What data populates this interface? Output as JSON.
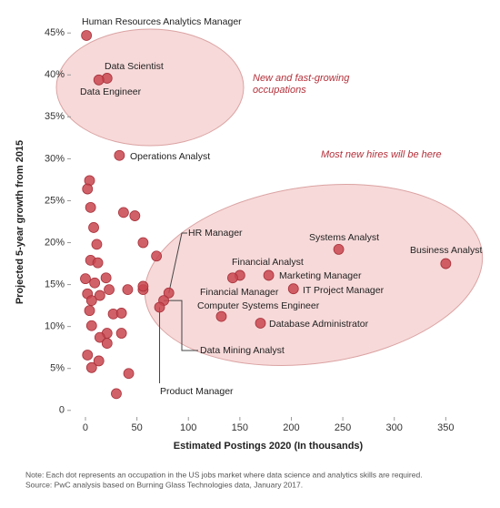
{
  "chart_data": {
    "type": "scatter",
    "x_label": "Estimated Postings 2020 (In thousands)",
    "y_label": "Projected 5-year growth from 2015",
    "annotations": [
      "New and fast-growing occupations",
      "Most new hires will be here"
    ],
    "note": "Note: Each dot represents an occupation in the US jobs market where data science and analytics skills are required.",
    "source": "Source: PwC analysis based on Burning Glass Technologies data, January 2017.",
    "color": "#c9454f",
    "xlim": [
      -15,
      370
    ],
    "ylim": [
      -1,
      46
    ],
    "xticks": [
      0,
      50,
      100,
      150,
      200,
      250,
      300,
      350
    ],
    "yticks": [
      0,
      {
        "value": 5,
        "label": "5%"
      },
      {
        "value": 10,
        "label": "10%"
      },
      {
        "value": 15,
        "label": "15%"
      },
      {
        "value": 20,
        "label": "20%"
      },
      {
        "value": 25,
        "label": "25%"
      },
      {
        "value": 30,
        "label": "30%"
      },
      {
        "value": 35,
        "label": "35%"
      },
      {
        "value": 40,
        "label": "40%"
      },
      {
        "value": 45,
        "label": "45%"
      }
    ],
    "point_labels": [
      "Human Resources Analytics Manager",
      "Data Scientist",
      "Data Engineer",
      "Operations Analyst",
      "HR Manager",
      "Financial Analyst",
      "Financial Manager",
      "Marketing Manager",
      "IT Project Manager",
      "Systems Analyst",
      "Business Analyst",
      "Computer Systems Engineer",
      "Database Administrator",
      "Data Mining Analyst",
      "Product Manager",
      null,
      null,
      null,
      null,
      null,
      null,
      null,
      null,
      null,
      null,
      null,
      null,
      null,
      null,
      null,
      null,
      null,
      null,
      null,
      null,
      null,
      null,
      null,
      null,
      null,
      null,
      null,
      null,
      null,
      null,
      null,
      null,
      null,
      null
    ],
    "x": [
      1,
      21,
      13,
      33,
      81,
      150,
      143,
      178,
      202,
      246,
      350,
      132,
      170,
      76,
      72,
      4,
      2,
      5,
      8,
      11,
      37,
      48,
      56,
      69,
      5,
      12,
      0,
      20,
      9,
      23,
      2,
      14,
      6,
      4,
      27,
      35,
      41,
      56,
      56,
      6,
      21,
      35,
      14,
      21,
      2,
      13,
      6,
      42,
      30
    ],
    "values": [
      44.7,
      39.6,
      39.4,
      30.4,
      14.0,
      16.1,
      15.8,
      16.1,
      14.5,
      19.2,
      17.5,
      11.2,
      10.4,
      13.1,
      12.3,
      27.4,
      26.4,
      24.2,
      21.8,
      19.8,
      23.6,
      23.2,
      20.0,
      18.4,
      17.9,
      17.6,
      15.7,
      15.8,
      15.2,
      14.4,
      13.9,
      13.7,
      13.1,
      11.9,
      11.5,
      11.6,
      14.4,
      14.4,
      14.8,
      10.1,
      9.2,
      9.2,
      8.7,
      8.0,
      6.6,
      5.9,
      5.1,
      4.4,
      2.0
    ]
  }
}
